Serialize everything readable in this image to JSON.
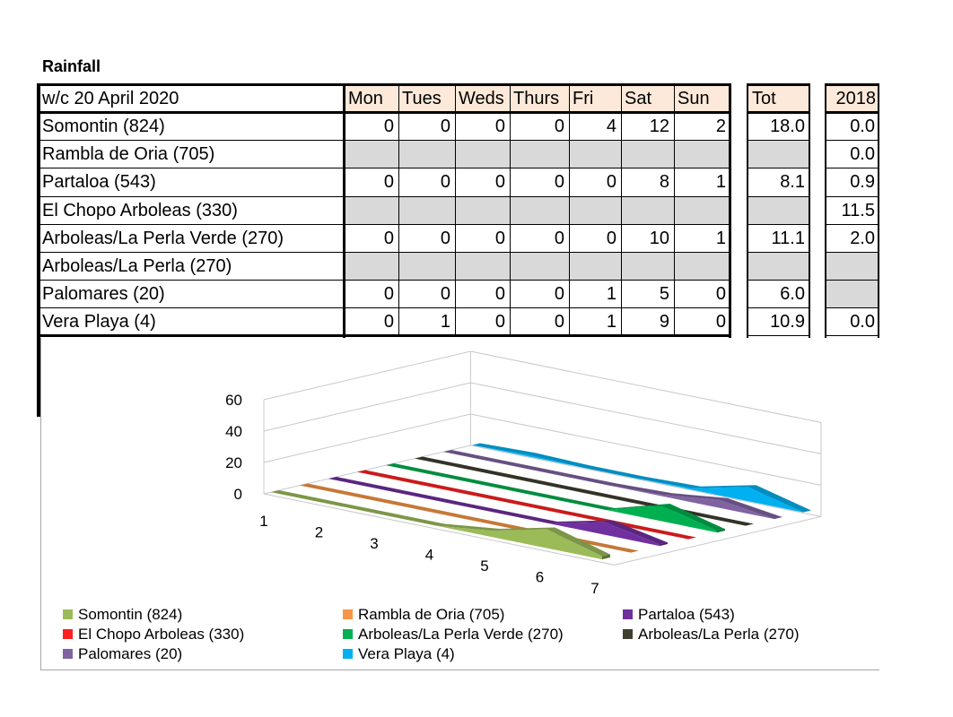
{
  "sheet": {
    "title": "Rainfall",
    "week_label": "w/c 20 April 2020",
    "days": [
      "Mon",
      "Tues",
      "Weds",
      "Thurs",
      "Fri",
      "Sat",
      "Sun"
    ],
    "tot_label": "Tot",
    "year_label": "2018",
    "rows": [
      {
        "station": "Somontin (824)",
        "days": [
          "0",
          "0",
          "0",
          "0",
          "4",
          "12",
          "2"
        ],
        "tot": "18.0",
        "year": "0.0",
        "grey_days": false,
        "grey_year": false
      },
      {
        "station": "Rambla de Oria (705)",
        "days": [
          "",
          "",
          "",
          "",
          "",
          "",
          ""
        ],
        "tot": "",
        "year": "0.0",
        "grey_days": true,
        "grey_year": false
      },
      {
        "station": "Partaloa (543)",
        "days": [
          "0",
          "0",
          "0",
          "0",
          "0",
          "8",
          "1"
        ],
        "tot": "8.1",
        "year": "0.9",
        "grey_days": false,
        "grey_year": false
      },
      {
        "station": "El Chopo Arboleas (330)",
        "days": [
          "",
          "",
          "",
          "",
          "",
          "",
          ""
        ],
        "tot": "",
        "year": "11.5",
        "grey_days": true,
        "grey_year": false
      },
      {
        "station": "Arboleas/La Perla Verde (270)",
        "days": [
          "0",
          "0",
          "0",
          "0",
          "0",
          "10",
          "1"
        ],
        "tot": "11.1",
        "year": "2.0",
        "grey_days": false,
        "grey_year": false
      },
      {
        "station": "Arboleas/La Perla (270)",
        "days": [
          "",
          "",
          "",
          "",
          "",
          "",
          ""
        ],
        "tot": "",
        "year": "",
        "grey_days": true,
        "grey_year": true
      },
      {
        "station": "Palomares (20)",
        "days": [
          "0",
          "0",
          "0",
          "0",
          "1",
          "5",
          "0"
        ],
        "tot": "6.0",
        "year": "",
        "grey_days": false,
        "grey_year": true
      },
      {
        "station": "Vera Playa (4)",
        "days": [
          "0",
          "1",
          "0",
          "0",
          "1",
          "9",
          "0"
        ],
        "tot": "10.9",
        "year": "0.0",
        "grey_days": false,
        "grey_year": false
      }
    ]
  },
  "chart_data": {
    "type": "area",
    "subtype": "3d-area",
    "x": [
      1,
      2,
      3,
      4,
      5,
      6,
      7
    ],
    "ylim": [
      0,
      60
    ],
    "yticks": [
      0,
      20,
      40,
      60
    ],
    "legend_position": "bottom",
    "series": [
      {
        "name": "Somontin (824)",
        "color": "#9bbb59",
        "values": [
          0,
          0,
          0,
          0,
          4,
          12,
          2
        ]
      },
      {
        "name": "Rambla de Oria (705)",
        "color": "#f79646",
        "values": [
          0,
          0,
          0,
          0,
          0,
          0,
          0
        ]
      },
      {
        "name": "Partaloa (543)",
        "color": "#7030a0",
        "values": [
          0,
          0,
          0,
          0,
          0,
          8,
          1
        ]
      },
      {
        "name": "El Chopo Arboleas (330)",
        "color": "#ff2020",
        "values": [
          0,
          0,
          0,
          0,
          0,
          0,
          0
        ]
      },
      {
        "name": "Arboleas/La Perla Verde (270)",
        "color": "#00b050",
        "values": [
          0,
          0,
          0,
          0,
          0,
          10,
          1
        ]
      },
      {
        "name": "Arboleas/La Perla (270)",
        "color": "#3f3f2f",
        "values": [
          0,
          0,
          0,
          0,
          0,
          0,
          0
        ]
      },
      {
        "name": "Palomares (20)",
        "color": "#8064a2",
        "values": [
          0,
          0,
          0,
          0,
          1,
          5,
          0
        ]
      },
      {
        "name": "Vera Playa (4)",
        "color": "#00b0f0",
        "values": [
          0,
          1,
          0,
          0,
          1,
          9,
          0
        ]
      }
    ]
  }
}
